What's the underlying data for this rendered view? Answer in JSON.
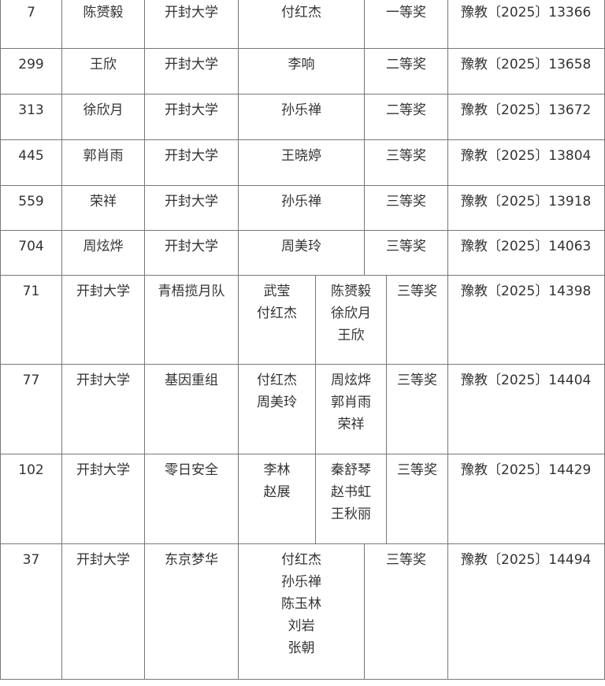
{
  "individual_rows": [
    {
      "no": "7",
      "name": "陈赟毅",
      "school": "开封大学",
      "advisor": "付红杰",
      "award": "一等奖",
      "doc": "豫教〔2025〕13366"
    },
    {
      "no": "299",
      "name": "王欣",
      "school": "开封大学",
      "advisor": "李响",
      "award": "二等奖",
      "doc": "豫教〔2025〕13658"
    },
    {
      "no": "313",
      "name": "徐欣月",
      "school": "开封大学",
      "advisor": "孙乐禅",
      "award": "二等奖",
      "doc": "豫教〔2025〕13672"
    },
    {
      "no": "445",
      "name": "郭肖雨",
      "school": "开封大学",
      "advisor": "王晓婷",
      "award": "三等奖",
      "doc": "豫教〔2025〕13804"
    },
    {
      "no": "559",
      "name": "荣祥",
      "school": "开封大学",
      "advisor": "孙乐禅",
      "award": "三等奖",
      "doc": "豫教〔2025〕13918"
    },
    {
      "no": "704",
      "name": "周炫烨",
      "school": "开封大学",
      "advisor": "周美玲",
      "award": "三等奖",
      "doc": "豫教〔2025〕14063"
    }
  ],
  "team_rows": [
    {
      "no": "71",
      "school": "开封大学",
      "team": "青梧揽月队",
      "advisors": [
        "武莹",
        "付红杰"
      ],
      "members": [
        "陈赟毅",
        "徐欣月",
        "王欣"
      ],
      "award": "三等奖",
      "doc": "豫教〔2025〕14398"
    },
    {
      "no": "77",
      "school": "开封大学",
      "team": "基因重组",
      "advisors": [
        "付红杰",
        "周美玲"
      ],
      "members": [
        "周炫烨",
        "郭肖雨",
        "荣祥"
      ],
      "award": "三等奖",
      "doc": "豫教〔2025〕14404"
    },
    {
      "no": "102",
      "school": "开封大学",
      "team": "零日安全",
      "advisors": [
        "李林",
        "赵展"
      ],
      "members": [
        "秦舒琴",
        "赵书虹",
        "王秋丽"
      ],
      "award": "三等奖",
      "doc": "豫教〔2025〕14429"
    }
  ],
  "group_rows": [
    {
      "no": "37",
      "school": "开封大学",
      "team": "东京梦华",
      "people": [
        "付红杰",
        "孙乐禅",
        "陈玉林",
        "刘岩",
        "张朝"
      ],
      "award": "三等奖",
      "doc": "豫教〔2025〕14494"
    }
  ]
}
